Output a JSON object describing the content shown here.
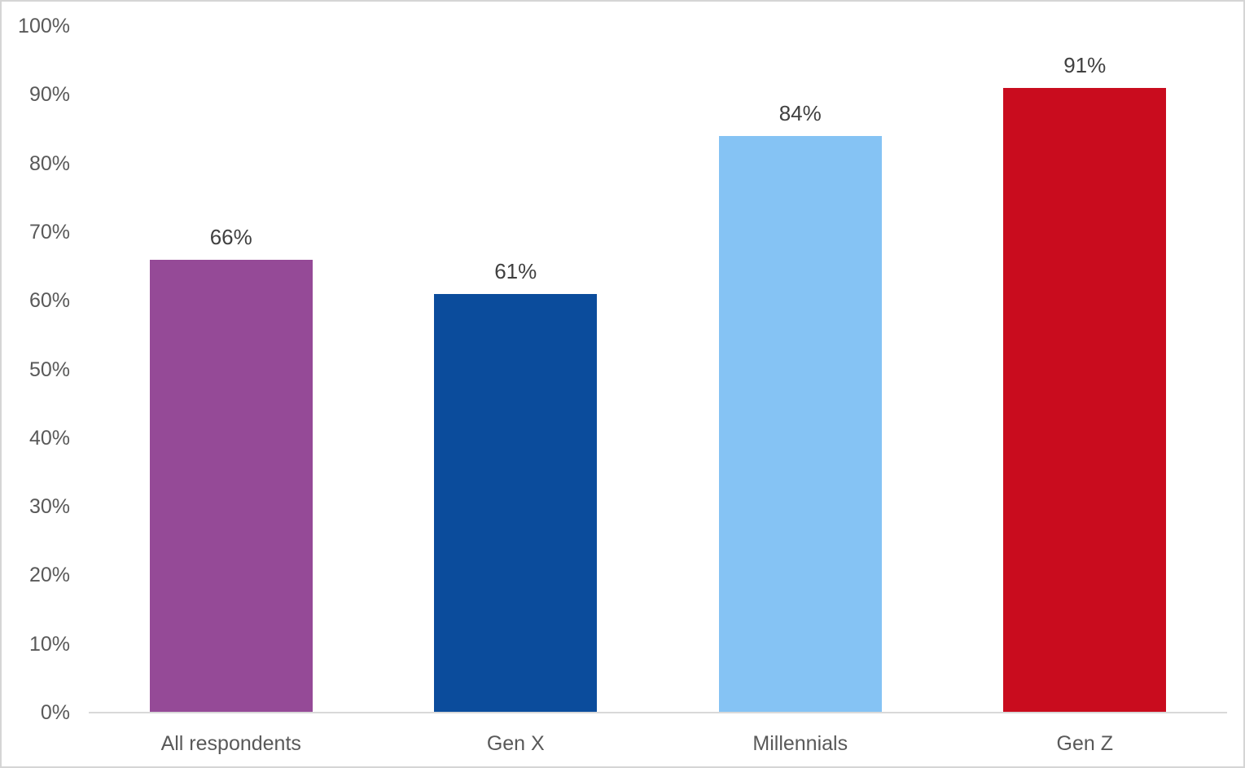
{
  "chart_data": {
    "type": "bar",
    "title": "",
    "xlabel": "",
    "ylabel": "",
    "categories": [
      "All respondents",
      "Gen X",
      "Millennials",
      "Gen Z"
    ],
    "values": [
      66,
      61,
      84,
      91
    ],
    "data_labels": [
      "66%",
      "61%",
      "84%",
      "91%"
    ],
    "bar_colors": [
      "#954A97",
      "#0B4C9C",
      "#85C3F4",
      "#C90C1E"
    ],
    "y_ticks": [
      {
        "value": 0,
        "label": "0%"
      },
      {
        "value": 10,
        "label": "10%"
      },
      {
        "value": 20,
        "label": "20%"
      },
      {
        "value": 30,
        "label": "30%"
      },
      {
        "value": 40,
        "label": "40%"
      },
      {
        "value": 50,
        "label": "50%"
      },
      {
        "value": 60,
        "label": "60%"
      },
      {
        "value": 70,
        "label": "70%"
      },
      {
        "value": 80,
        "label": "80%"
      },
      {
        "value": 90,
        "label": "90%"
      },
      {
        "value": 100,
        "label": "100%"
      }
    ],
    "ylim": [
      0,
      100
    ],
    "grid": false,
    "legend": "none",
    "colors": {
      "axis_label": "#595959",
      "data_label": "#404040",
      "axis_line": "#d9d9d9",
      "frame_border": "#d5d5d5",
      "background": "#ffffff"
    }
  }
}
